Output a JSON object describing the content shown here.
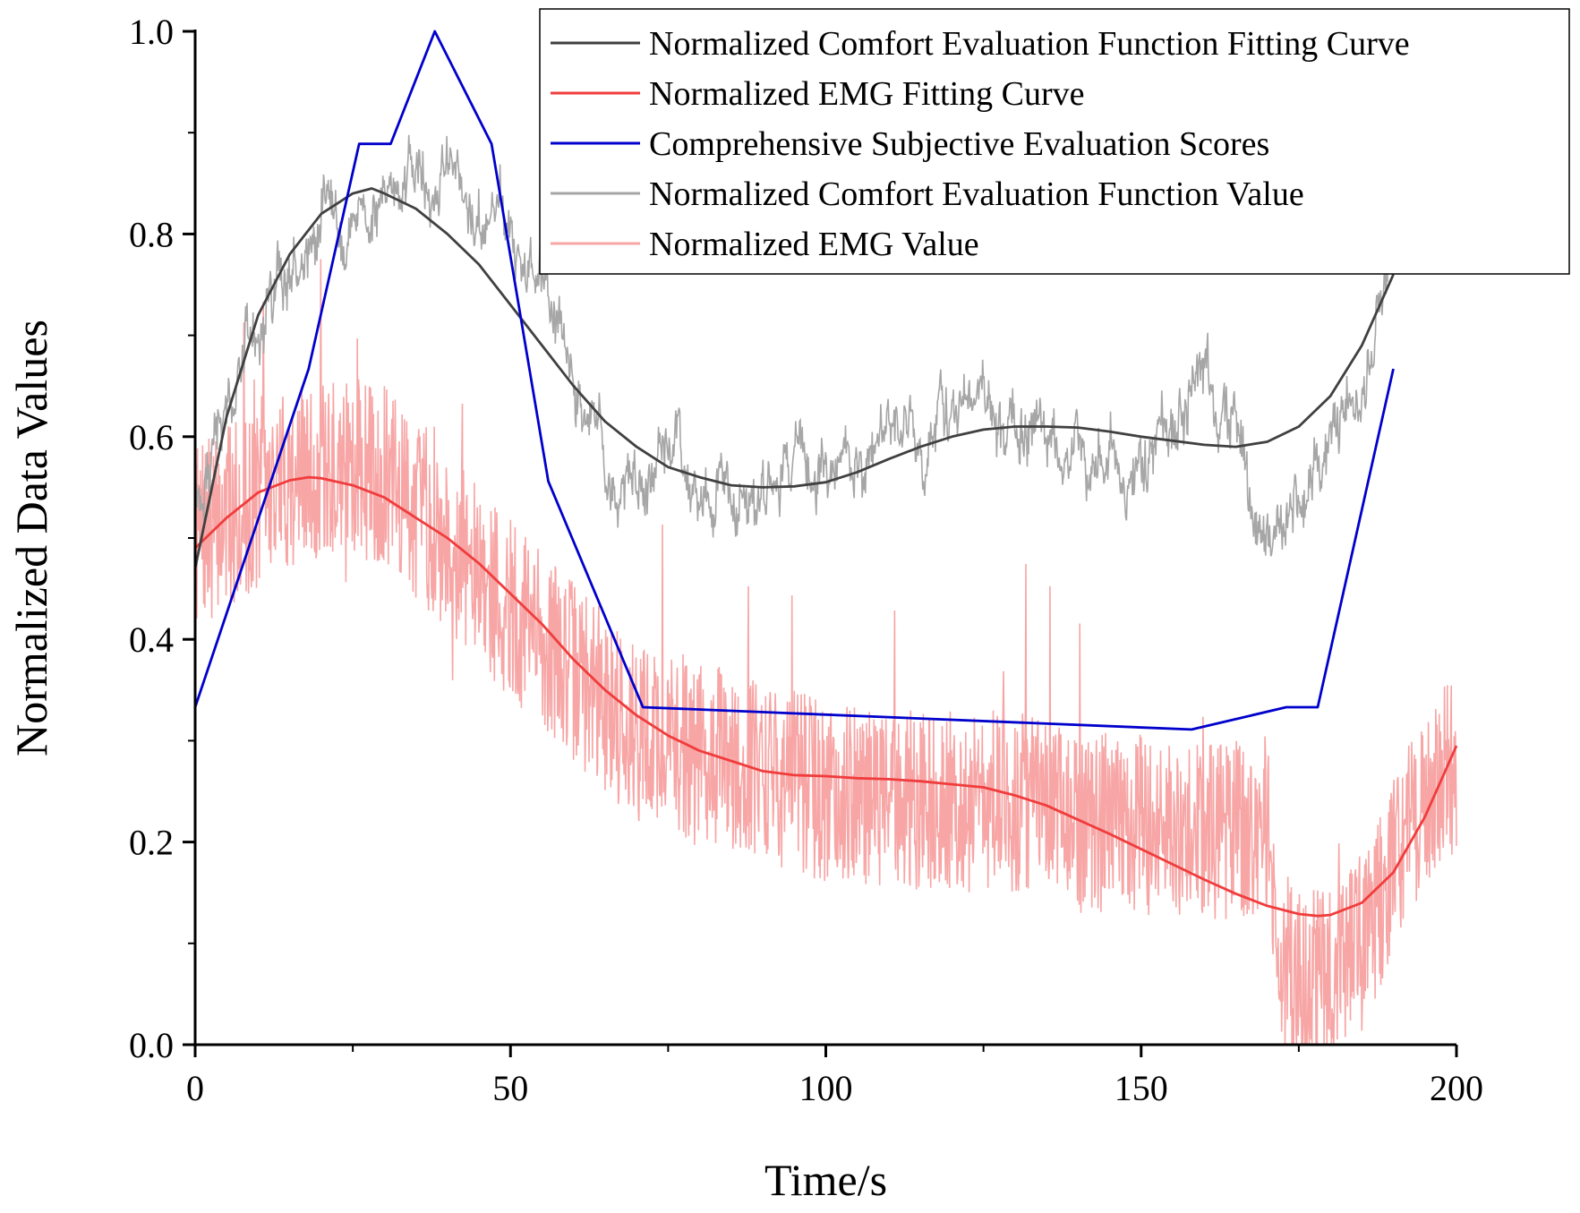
{
  "chart_data": {
    "type": "line",
    "title": "",
    "xlabel": "Time/s",
    "ylabel": "Normalized Data Values",
    "xlim": [
      0,
      200
    ],
    "ylim": [
      0.0,
      1.0
    ],
    "x_ticks": [
      "0",
      "50",
      "100",
      "150",
      "200"
    ],
    "y_ticks": [
      "0.0",
      "0.2",
      "0.4",
      "0.6",
      "0.8",
      "1.0"
    ],
    "grid": false,
    "legend_position": "top-right",
    "series": [
      {
        "name": "Normalized Comfort Evaluation Function Value",
        "color": "#a6a6a6",
        "style": "noisy",
        "x": [
          0,
          5,
          10,
          15,
          20,
          25,
          30,
          35,
          40,
          45,
          50,
          55,
          60,
          65,
          70,
          75,
          80,
          85,
          90,
          95,
          100,
          105,
          110,
          115,
          120,
          125,
          130,
          135,
          140,
          145,
          150,
          155,
          160,
          165,
          170,
          175,
          180,
          185,
          190
        ],
        "values": [
          0.55,
          0.63,
          0.7,
          0.76,
          0.8,
          0.83,
          0.85,
          0.86,
          0.85,
          0.82,
          0.78,
          0.72,
          0.64,
          0.58,
          0.55,
          0.55,
          0.55,
          0.56,
          0.56,
          0.58,
          0.58,
          0.57,
          0.58,
          0.59,
          0.63,
          0.6,
          0.6,
          0.61,
          0.58,
          0.57,
          0.58,
          0.6,
          0.67,
          0.59,
          0.53,
          0.56,
          0.6,
          0.68,
          0.8
        ]
      },
      {
        "name": "Normalized EMG Value",
        "color": "#f7a5a5",
        "style": "noisy",
        "x": [
          0,
          5,
          10,
          15,
          20,
          25,
          30,
          35,
          40,
          45,
          50,
          55,
          60,
          65,
          70,
          75,
          80,
          85,
          90,
          95,
          100,
          105,
          110,
          115,
          120,
          125,
          130,
          135,
          140,
          145,
          150,
          155,
          160,
          165,
          170,
          172,
          175,
          180,
          185,
          190,
          195,
          200
        ],
        "values": [
          0.5,
          0.52,
          0.54,
          0.56,
          0.56,
          0.57,
          0.56,
          0.53,
          0.5,
          0.46,
          0.43,
          0.4,
          0.37,
          0.34,
          0.31,
          0.3,
          0.29,
          0.28,
          0.27,
          0.26,
          0.25,
          0.25,
          0.24,
          0.24,
          0.24,
          0.24,
          0.24,
          0.23,
          0.22,
          0.22,
          0.22,
          0.21,
          0.21,
          0.21,
          0.22,
          0.08,
          0.07,
          0.06,
          0.1,
          0.18,
          0.24,
          0.28
        ]
      },
      {
        "name": "Normalized Comfort Evaluation Function Fitting Curve",
        "color": "#404040",
        "style": "line",
        "x": [
          0,
          5,
          10,
          15,
          20,
          25,
          28,
          30,
          35,
          40,
          45,
          50,
          55,
          60,
          65,
          70,
          75,
          80,
          85,
          90,
          95,
          100,
          105,
          110,
          115,
          120,
          125,
          130,
          135,
          140,
          145,
          150,
          155,
          160,
          165,
          170,
          175,
          180,
          185,
          190
        ],
        "values": [
          0.47,
          0.62,
          0.72,
          0.78,
          0.82,
          0.84,
          0.845,
          0.84,
          0.825,
          0.8,
          0.77,
          0.73,
          0.69,
          0.65,
          0.615,
          0.59,
          0.57,
          0.56,
          0.552,
          0.55,
          0.551,
          0.555,
          0.565,
          0.578,
          0.59,
          0.6,
          0.607,
          0.61,
          0.61,
          0.609,
          0.605,
          0.6,
          0.596,
          0.592,
          0.59,
          0.595,
          0.61,
          0.64,
          0.69,
          0.76
        ]
      },
      {
        "name": "Normalized EMG Fitting Curve",
        "color": "#f03c3c",
        "style": "line",
        "x": [
          0,
          5,
          10,
          15,
          18,
          20,
          25,
          30,
          35,
          40,
          45,
          50,
          55,
          60,
          65,
          70,
          75,
          80,
          85,
          90,
          95,
          100,
          105,
          110,
          115,
          120,
          125,
          130,
          135,
          140,
          145,
          150,
          155,
          160,
          165,
          170,
          175,
          178,
          180,
          185,
          190,
          195,
          200
        ],
        "values": [
          0.49,
          0.52,
          0.545,
          0.557,
          0.56,
          0.559,
          0.552,
          0.54,
          0.52,
          0.5,
          0.475,
          0.445,
          0.415,
          0.38,
          0.35,
          0.325,
          0.305,
          0.29,
          0.28,
          0.27,
          0.266,
          0.265,
          0.263,
          0.262,
          0.26,
          0.257,
          0.254,
          0.246,
          0.236,
          0.222,
          0.208,
          0.193,
          0.178,
          0.163,
          0.149,
          0.137,
          0.129,
          0.127,
          0.128,
          0.14,
          0.17,
          0.225,
          0.295
        ]
      },
      {
        "name": "Comprehensive Subjective Evaluation Scores",
        "color": "#0000cc",
        "style": "line",
        "x": [
          0,
          18,
          26,
          31,
          38,
          47,
          56,
          71,
          158,
          173,
          178,
          190
        ],
        "values": [
          0.333,
          0.667,
          0.889,
          0.889,
          1.0,
          0.889,
          0.556,
          0.333,
          0.311,
          0.333,
          0.333,
          0.667
        ]
      }
    ],
    "legend_order": [
      "Normalized Comfort Evaluation Function Fitting Curve",
      "Normalized EMG Fitting Curve",
      "Comprehensive Subjective Evaluation Scores",
      "Normalized Comfort Evaluation Function Value",
      "Normalized EMG Value"
    ]
  }
}
